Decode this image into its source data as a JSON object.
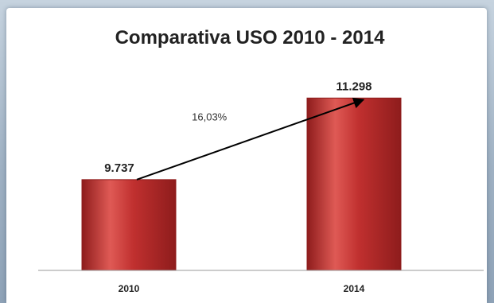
{
  "chart_data": {
    "type": "bar",
    "title": "Comparativa USO 2010 - 2014",
    "categories": [
      "2010",
      "2014"
    ],
    "values": [
      9737,
      11298
    ],
    "value_labels": [
      "9.737",
      "11.298"
    ],
    "annotation": {
      "text": "16,03%",
      "from": "2010",
      "to": "2014"
    },
    "ylim": [
      8000,
      11500
    ],
    "grid": false,
    "legend": "none",
    "colors": {
      "bar": "#c0302f",
      "bar_dark": "#8e1c1c",
      "bar_light": "#df5a55",
      "axis": "#999999",
      "arrow": "#000000"
    }
  }
}
